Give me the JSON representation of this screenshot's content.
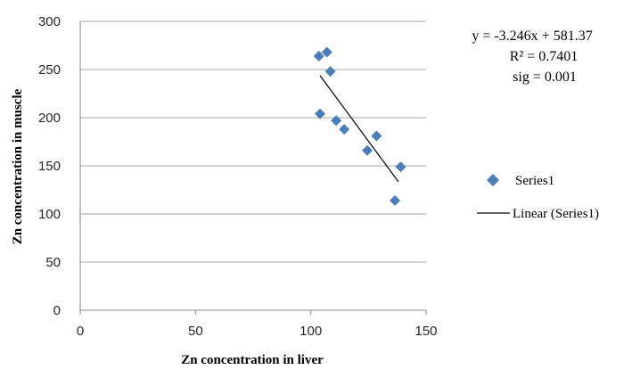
{
  "colors": {
    "marker": "#4a7ebb",
    "trendline": "#000000",
    "grid": "#a6a6a6",
    "axis": "#868686"
  },
  "annotation": {
    "equation": "y = -3.246x + 581.37",
    "r_squared": "R² = 0.7401",
    "sig": "sig = 0.001"
  },
  "legend": {
    "series_label": "Series1",
    "trend_label": "Linear (Series1)"
  },
  "chart_data": {
    "type": "scatter",
    "title": "",
    "xlabel": "Zn concentration  in liver",
    "ylabel": "Zn concentration in muscle",
    "xlim": [
      0,
      150
    ],
    "ylim": [
      0,
      300
    ],
    "x_ticks": [
      "0",
      "50",
      "100",
      "150"
    ],
    "y_ticks": [
      "0",
      "50",
      "100",
      "150",
      "200",
      "250",
      "300"
    ],
    "grid": "horizontal",
    "legend_position": "right",
    "series": [
      {
        "name": "Series1",
        "marker": "diamond",
        "points": [
          {
            "x": 103.5,
            "y": 264
          },
          {
            "x": 107,
            "y": 268
          },
          {
            "x": 108.5,
            "y": 248
          },
          {
            "x": 104,
            "y": 204
          },
          {
            "x": 111,
            "y": 197
          },
          {
            "x": 114.5,
            "y": 188
          },
          {
            "x": 124.5,
            "y": 166
          },
          {
            "x": 128.5,
            "y": 181
          },
          {
            "x": 136.5,
            "y": 114
          },
          {
            "x": 139,
            "y": 149
          }
        ]
      }
    ],
    "trendline": {
      "name": "Linear (Series1)",
      "type": "linear",
      "slope": -3.246,
      "intercept": 581.37,
      "x_range": [
        104,
        138
      ]
    }
  }
}
